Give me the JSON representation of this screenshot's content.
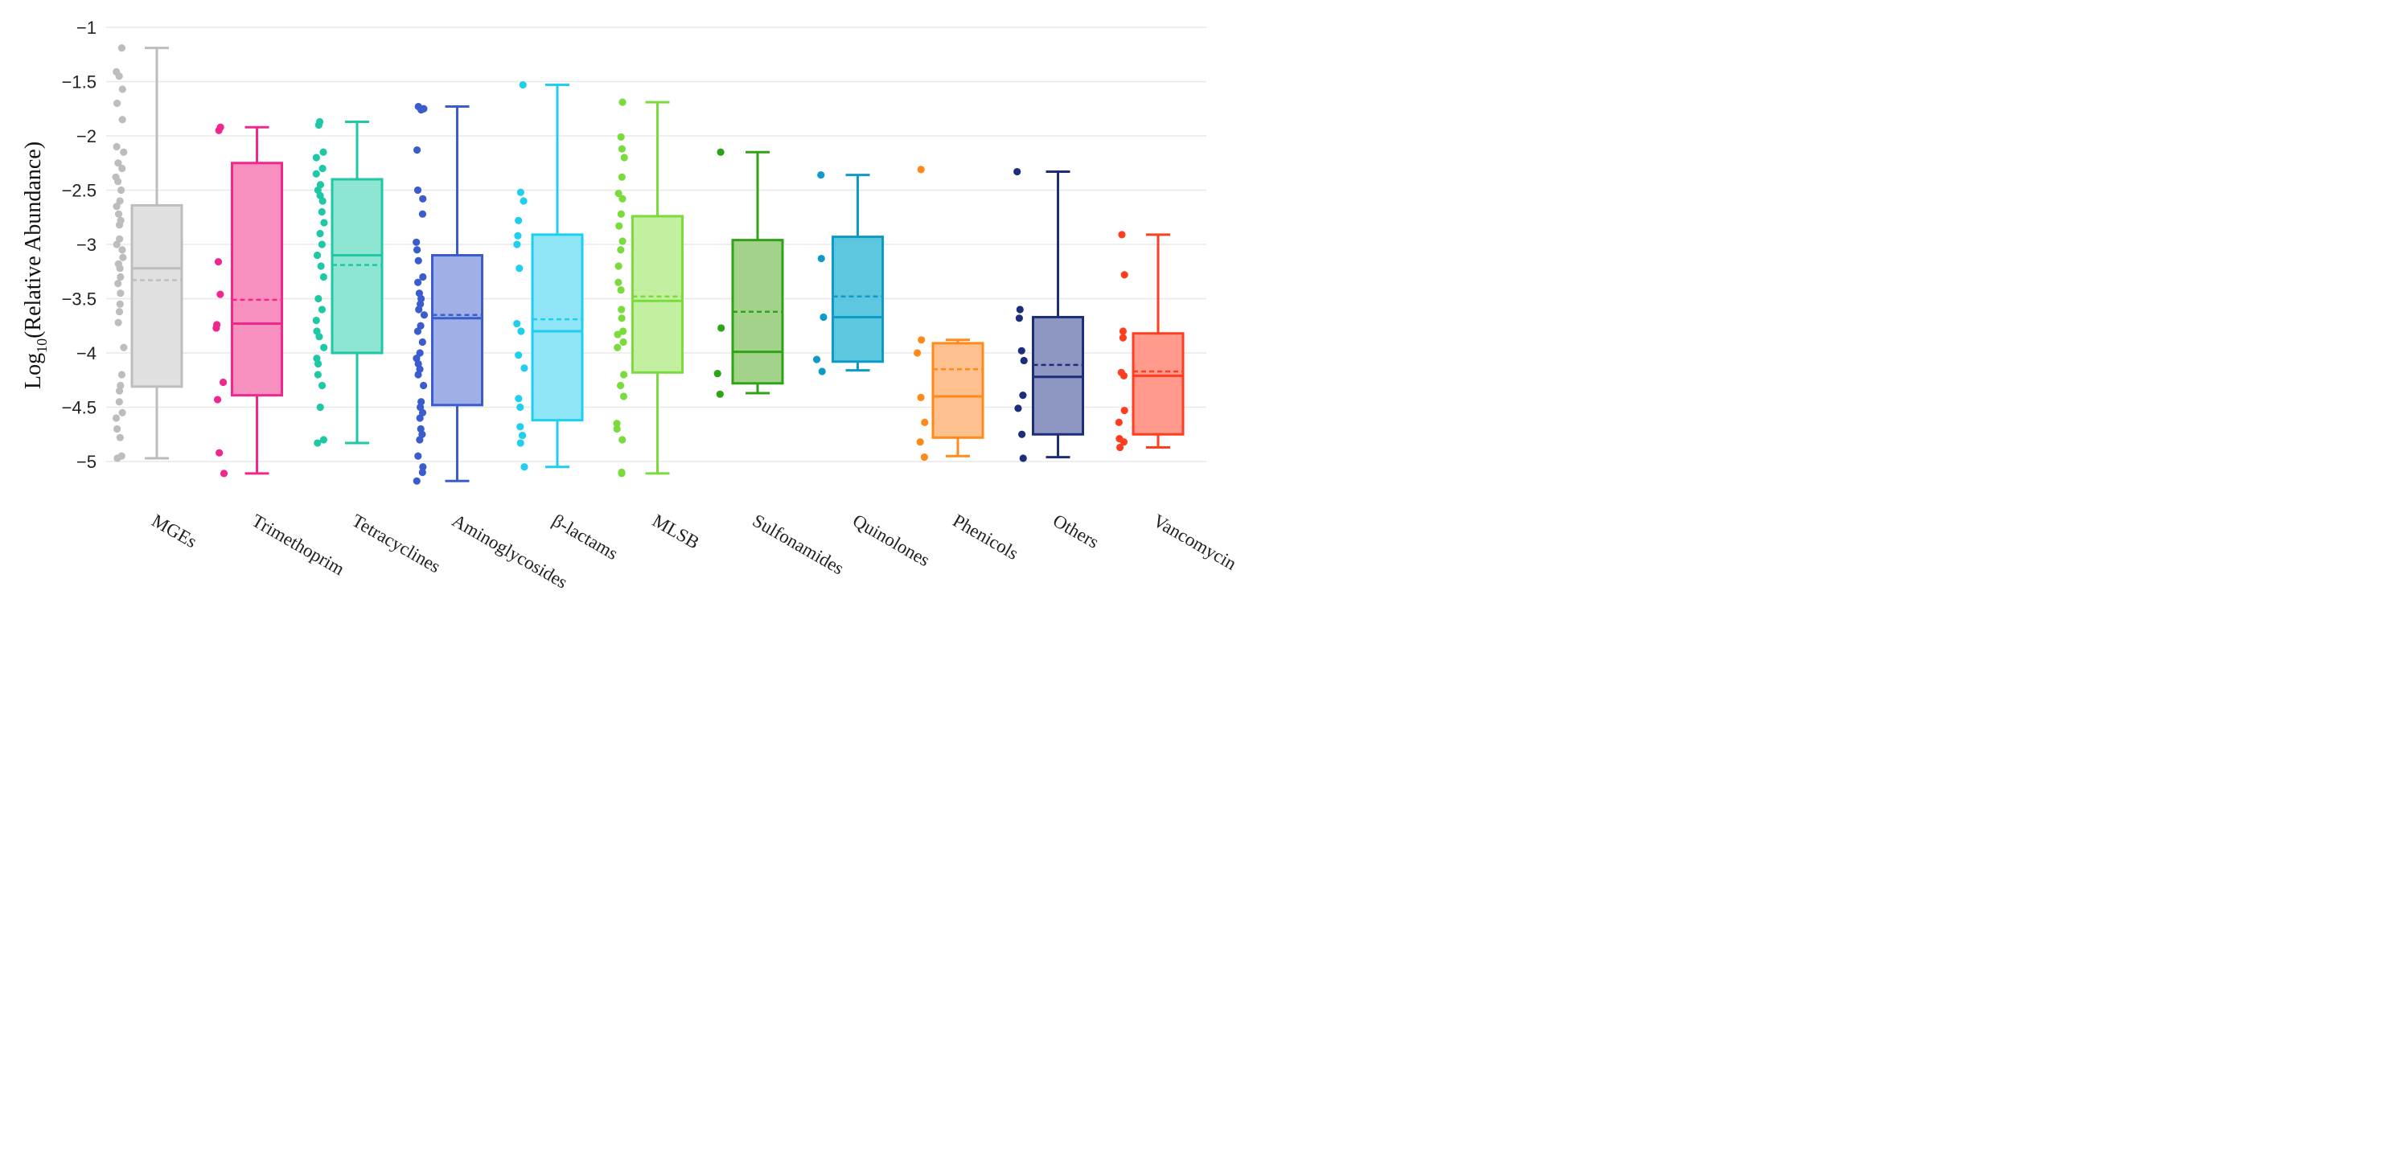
{
  "chart_data": {
    "type": "box",
    "ylabel_main": "Log",
    "ylabel_sub": "10",
    "ylabel_rest": "(Relative Abundance)",
    "ylim": [
      -5.3,
      -1
    ],
    "yticks": [
      -1,
      -1.5,
      -2,
      -2.5,
      -3,
      -3.5,
      -4,
      -4.5,
      -5
    ],
    "ytick_labels": [
      "−1",
      "−1.5",
      "−2",
      "−2.5",
      "−3",
      "−3.5",
      "−4",
      "−4.5",
      "−5"
    ],
    "grid": true,
    "categories": [
      "MGEs",
      "Trimethoprim",
      "Tetracyclines",
      "Aminoglycosides",
      "β-lactams",
      "MLSB",
      "Sulfonamides",
      "Quinolones",
      "Phenicols",
      "Others",
      "Vancomycin"
    ],
    "series": [
      {
        "color": "#bdbdbd",
        "fill": "#e0e0e0",
        "min": -4.97,
        "q1": -4.31,
        "median": -3.22,
        "mean": -3.33,
        "q3": -2.64,
        "max": -1.19,
        "points": [
          -1.19,
          -1.41,
          -1.45,
          -1.57,
          -1.7,
          -1.85,
          -2.1,
          -2.15,
          -2.25,
          -2.3,
          -2.38,
          -2.42,
          -2.5,
          -2.6,
          -2.65,
          -2.72,
          -2.78,
          -2.82,
          -2.95,
          -3.0,
          -3.05,
          -3.12,
          -3.18,
          -3.22,
          -3.3,
          -3.36,
          -3.45,
          -3.55,
          -3.62,
          -3.72,
          -3.95,
          -4.2,
          -4.3,
          -4.35,
          -4.45,
          -4.55,
          -4.6,
          -4.7,
          -4.78,
          -4.95,
          -4.97
        ]
      },
      {
        "color": "#f0288c",
        "fill": "#f78fbf",
        "min": -5.11,
        "q1": -4.39,
        "median": -3.73,
        "mean": -3.51,
        "q3": -2.25,
        "max": -1.92,
        "points": [
          -1.92,
          -1.95,
          -3.16,
          -3.46,
          -3.74,
          -3.77,
          -4.27,
          -4.43,
          -4.92,
          -5.11
        ]
      },
      {
        "color": "#1ec8a5",
        "fill": "#8ee6d2",
        "min": -4.83,
        "q1": -4.0,
        "median": -3.1,
        "mean": -3.19,
        "q3": -2.4,
        "max": -1.87,
        "points": [
          -1.87,
          -1.9,
          -2.15,
          -2.2,
          -2.3,
          -2.35,
          -2.45,
          -2.5,
          -2.55,
          -2.6,
          -2.7,
          -2.8,
          -2.9,
          -3.0,
          -3.1,
          -3.2,
          -3.3,
          -3.5,
          -3.6,
          -3.7,
          -3.8,
          -3.85,
          -3.95,
          -4.05,
          -4.1,
          -4.2,
          -4.3,
          -4.5,
          -4.8,
          -4.83
        ]
      },
      {
        "color": "#3a5ccc",
        "fill": "#9fb0e6",
        "min": -5.18,
        "q1": -4.48,
        "median": -3.68,
        "mean": -3.65,
        "q3": -3.1,
        "max": -1.73,
        "points": [
          -1.73,
          -1.75,
          -1.76,
          -2.13,
          -2.5,
          -2.58,
          -2.72,
          -2.98,
          -3.05,
          -3.15,
          -3.3,
          -3.35,
          -3.45,
          -3.5,
          -3.55,
          -3.6,
          -3.65,
          -3.75,
          -3.8,
          -3.9,
          -4.0,
          -4.05,
          -4.1,
          -4.15,
          -4.2,
          -4.3,
          -4.45,
          -4.5,
          -4.55,
          -4.6,
          -4.7,
          -4.75,
          -4.8,
          -4.95,
          -5.05,
          -5.1,
          -5.18
        ]
      },
      {
        "color": "#1ecfee",
        "fill": "#8fe5f6",
        "min": -5.05,
        "q1": -4.62,
        "median": -3.8,
        "mean": -3.69,
        "q3": -2.91,
        "max": -1.53,
        "points": [
          -1.53,
          -2.52,
          -2.6,
          -2.78,
          -2.92,
          -3.0,
          -3.22,
          -3.73,
          -3.8,
          -4.02,
          -4.14,
          -4.42,
          -4.5,
          -4.68,
          -4.76,
          -4.83,
          -5.05
        ]
      },
      {
        "color": "#7adb3c",
        "fill": "#c2f0a0",
        "min": -5.11,
        "q1": -4.18,
        "median": -3.52,
        "mean": -3.48,
        "q3": -2.74,
        "max": -1.69,
        "points": [
          -1.69,
          -2.01,
          -2.12,
          -2.2,
          -2.38,
          -2.53,
          -2.58,
          -2.72,
          -2.83,
          -2.97,
          -3.05,
          -3.2,
          -3.35,
          -3.42,
          -3.6,
          -3.68,
          -3.8,
          -3.83,
          -3.9,
          -3.95,
          -4.2,
          -4.3,
          -4.4,
          -4.65,
          -4.7,
          -4.8,
          -5.1,
          -5.11
        ]
      },
      {
        "color": "#2ea317",
        "fill": "#a3d38b",
        "min": -4.37,
        "q1": -4.28,
        "median": -3.99,
        "mean": -3.62,
        "q3": -2.96,
        "max": -2.15,
        "points": [
          -2.15,
          -3.77,
          -4.19,
          -4.38
        ]
      },
      {
        "color": "#0e9bc7",
        "fill": "#5ec7e0",
        "min": -4.16,
        "q1": -4.08,
        "median": -3.67,
        "mean": -3.48,
        "q3": -2.93,
        "max": -2.36,
        "points": [
          -2.36,
          -3.13,
          -3.67,
          -4.06,
          -4.17
        ]
      },
      {
        "color": "#ff8a1c",
        "fill": "#ffc08f",
        "min": -4.95,
        "q1": -4.78,
        "median": -4.4,
        "mean": -4.15,
        "q3": -3.91,
        "max": -3.88,
        "points": [
          -2.31,
          -3.88,
          -4.0,
          -4.41,
          -4.64,
          -4.82,
          -4.96
        ]
      },
      {
        "color": "#1c2e7a",
        "fill": "#8e97c2",
        "min": -4.96,
        "q1": -4.75,
        "median": -4.22,
        "mean": -4.11,
        "q3": -3.67,
        "max": -2.33,
        "points": [
          -2.33,
          -3.6,
          -3.68,
          -3.98,
          -4.07,
          -4.39,
          -4.51,
          -4.75,
          -4.97
        ]
      },
      {
        "color": "#ff3d21",
        "fill": "#ff9a8c",
        "min": -4.87,
        "q1": -4.75,
        "median": -4.21,
        "mean": -4.17,
        "q3": -3.82,
        "max": -2.91,
        "points": [
          -2.91,
          -3.28,
          -3.8,
          -3.86,
          -4.18,
          -4.21,
          -4.53,
          -4.64,
          -4.79,
          -4.82,
          -4.87
        ]
      }
    ]
  }
}
